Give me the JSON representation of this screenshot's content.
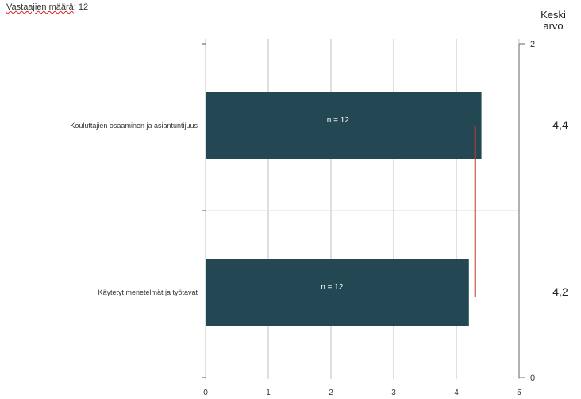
{
  "header": {
    "respondents_label": "Vastaajien määrä",
    "respondents_count": "12",
    "mean_header_line1": "Keski",
    "mean_header_line2": "arvo"
  },
  "chart_data": {
    "type": "bar",
    "orientation": "horizontal",
    "categories": [
      "Kouluttajien osaaminen ja asiantuntijuus",
      "Käytetyt menetelmät ja työtavat"
    ],
    "values": [
      4.4,
      4.2
    ],
    "bar_labels": [
      "n = 12",
      "n = 12"
    ],
    "mean_labels": [
      "4,4",
      "4,2"
    ],
    "xlim": [
      0,
      5
    ],
    "x_ticks": [
      "0",
      "1",
      "2",
      "3",
      "4",
      "5"
    ],
    "secondary_axis_ticks": [
      "2",
      "0"
    ],
    "reference_line_value": 4.3,
    "grid": true,
    "colors": {
      "bar": "#244853",
      "reference_line": "#c0392b",
      "grid": "#bfbfbf"
    }
  }
}
